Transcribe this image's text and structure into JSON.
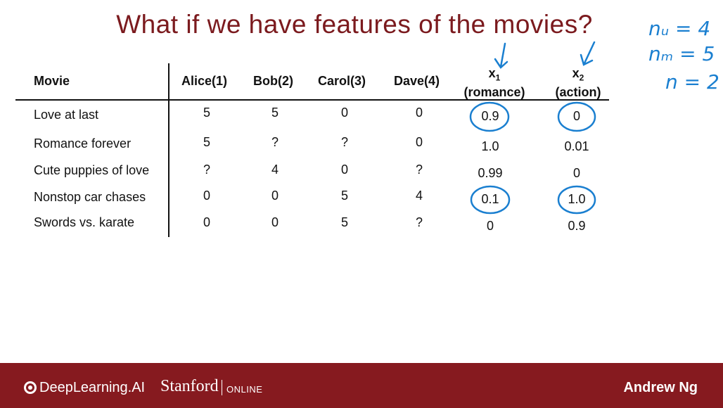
{
  "title": "What if we have features of the movies?",
  "table": {
    "movie_header": "Movie",
    "user_headers": [
      "Alice(1)",
      "Bob(2)",
      "Carol(3)",
      "Dave(4)"
    ],
    "feature_headers": [
      {
        "var": "x",
        "sub": "1",
        "name": "(romance)"
      },
      {
        "var": "x",
        "sub": "2",
        "name": "(action)"
      }
    ],
    "rows": [
      {
        "movie": "Love at last",
        "ratings": [
          "5",
          "5",
          "0",
          "0"
        ],
        "features": [
          "0.9",
          "0"
        ]
      },
      {
        "movie": "Romance forever",
        "ratings": [
          "5",
          "?",
          "?",
          "0"
        ],
        "features": [
          "1.0",
          "0.01"
        ]
      },
      {
        "movie": "Cute puppies of love",
        "ratings": [
          "?",
          "4",
          "0",
          "?"
        ],
        "features": [
          "0.99",
          "0"
        ]
      },
      {
        "movie": "Nonstop car chases",
        "ratings": [
          "0",
          "0",
          "5",
          "4"
        ],
        "features": [
          "0.1",
          "1.0"
        ]
      },
      {
        "movie": "Swords vs. karate",
        "ratings": [
          "0",
          "0",
          "5",
          "?"
        ],
        "features": [
          "0",
          "0.9"
        ]
      }
    ]
  },
  "handwritten_notes": [
    "nᵤ = 4",
    "nₘ = 5",
    "n = 2"
  ],
  "footer": {
    "brand": "DeepLearning.AI",
    "partner": "Stanford",
    "partner_sub": "ONLINE",
    "presenter": "Andrew Ng"
  },
  "colors": {
    "title": "#7b1a1e",
    "footer_bg": "#861a1f",
    "ink": "#1a7fd0"
  }
}
